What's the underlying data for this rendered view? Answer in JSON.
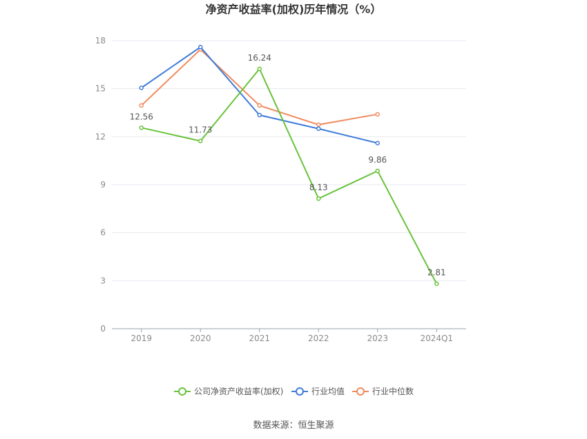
{
  "chart_data": {
    "type": "line",
    "title": "净资产收益率(加权)历年情况（%）",
    "categories": [
      "2019",
      "2020",
      "2021",
      "2022",
      "2023",
      "2024Q1"
    ],
    "ylim": [
      0,
      18
    ],
    "yticks": [
      0,
      3,
      6,
      9,
      12,
      15,
      18
    ],
    "grid": true,
    "legend_position": "bottom-center",
    "series": [
      {
        "name": "公司净资产收益率(加权)",
        "color": "#67c23a",
        "values": [
          12.56,
          11.73,
          16.24,
          8.13,
          9.86,
          2.81
        ],
        "labels": [
          "12.56",
          "11.73",
          "16.24",
          "8.13",
          "9.86",
          "2.81"
        ]
      },
      {
        "name": "行业均值",
        "color": "#3d7bd9",
        "values": [
          15.05,
          17.6,
          13.35,
          12.5,
          11.6,
          null
        ]
      },
      {
        "name": "行业中位数",
        "color": "#f08a5d",
        "values": [
          13.95,
          17.45,
          13.95,
          12.75,
          13.4,
          null
        ]
      }
    ],
    "source": "数据来源：恒生聚源"
  }
}
